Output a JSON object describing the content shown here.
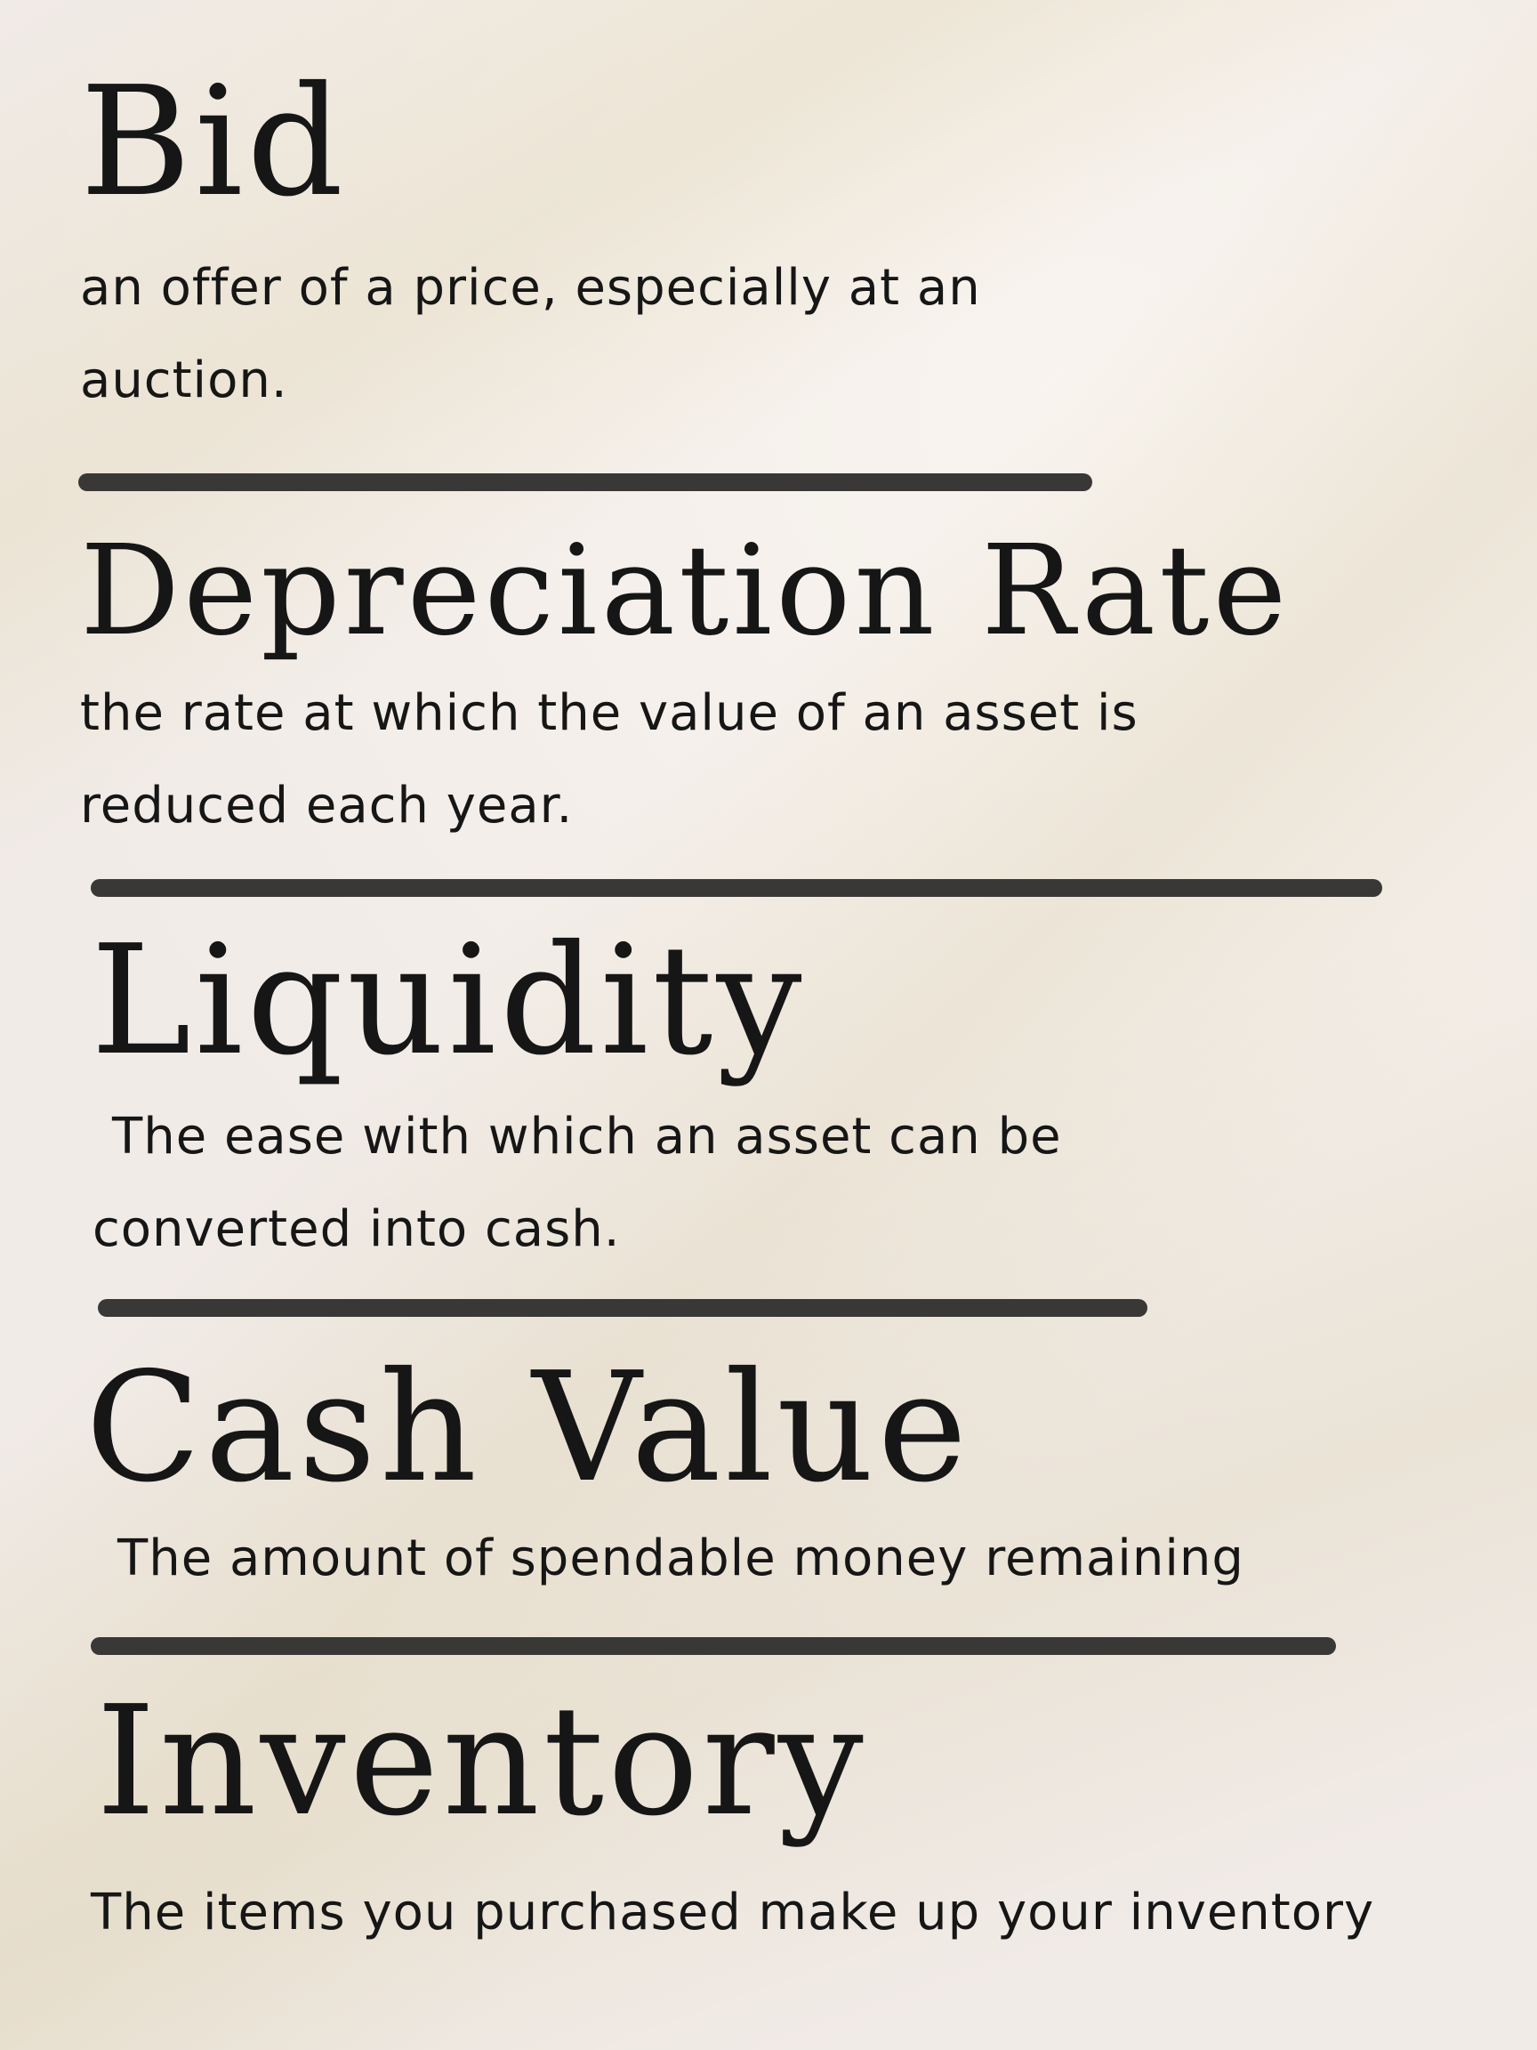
{
  "entries": [
    {
      "term": "Bid",
      "definition": "an offer of a price, especially at an auction."
    },
    {
      "term": "Depreciation Rate",
      "definition": "the rate at which the value of an asset is reduced each year."
    },
    {
      "term": "Liquidity",
      "definition": "The ease with which an asset can be converted into cash."
    },
    {
      "term": "Cash Value",
      "definition": "The amount of spendable money remaining"
    },
    {
      "term": "Inventory",
      "definition": "The items you purchased make up your inventory"
    }
  ],
  "colors": {
    "background": "#f1ebe7",
    "text": "#161616",
    "divider": "#3a3836"
  }
}
